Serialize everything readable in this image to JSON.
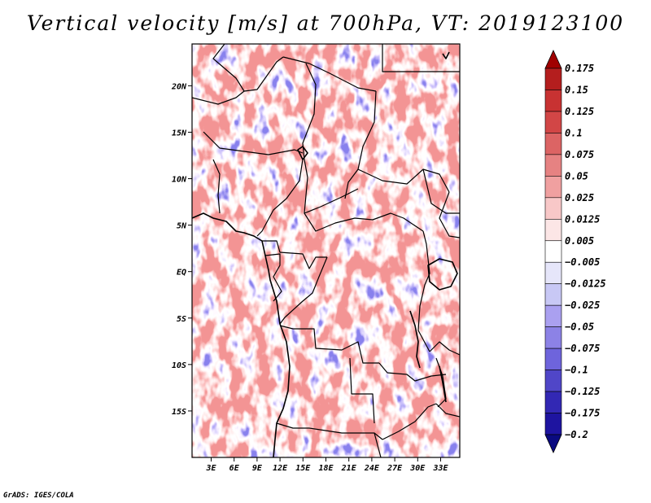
{
  "title": "Vertical velocity [m/s] at 700hPa, VT: 2019123100",
  "credit": "GrADS: IGES/COLA",
  "map": {
    "lat_ticks": [
      {
        "label": "20N",
        "value": 20
      },
      {
        "label": "15N",
        "value": 15
      },
      {
        "label": "10N",
        "value": 10
      },
      {
        "label": "5N",
        "value": 5
      },
      {
        "label": "EQ",
        "value": 0
      },
      {
        "label": "5S",
        "value": -5
      },
      {
        "label": "10S",
        "value": -10
      },
      {
        "label": "15S",
        "value": -15
      }
    ],
    "lon_ticks": [
      {
        "label": "3E",
        "value": 3
      },
      {
        "label": "6E",
        "value": 6
      },
      {
        "label": "9E",
        "value": 9
      },
      {
        "label": "12E",
        "value": 12
      },
      {
        "label": "15E",
        "value": 15
      },
      {
        "label": "18E",
        "value": 18
      },
      {
        "label": "21E",
        "value": 21
      },
      {
        "label": "24E",
        "value": 24
      },
      {
        "label": "27E",
        "value": 27
      },
      {
        "label": "30E",
        "value": 30
      },
      {
        "label": "33E",
        "value": 33
      }
    ],
    "lat_range": [
      -20,
      24.5
    ],
    "lon_range": [
      0.5,
      35.5
    ]
  },
  "colorbar": {
    "levels": [
      "0.175",
      "0.15",
      "0.125",
      "0.1",
      "0.075",
      "0.05",
      "0.025",
      "0.0125",
      "0.005",
      "−0.005",
      "−0.0125",
      "−0.025",
      "−0.05",
      "−0.075",
      "−0.1",
      "−0.125",
      "−0.175",
      "−0.2"
    ],
    "colors": [
      "#a00000",
      "#b41e1e",
      "#c83232",
      "#d24646",
      "#dc6464",
      "#e68282",
      "#f0a0a0",
      "#f8c8c8",
      "#fce6e6",
      "#ffffff",
      "#e6e6fa",
      "#c8c8f5",
      "#aaa0f0",
      "#8c82e6",
      "#6e64dc",
      "#5046c8",
      "#3228b4",
      "#1e14a0",
      "#0a0a80"
    ]
  }
}
